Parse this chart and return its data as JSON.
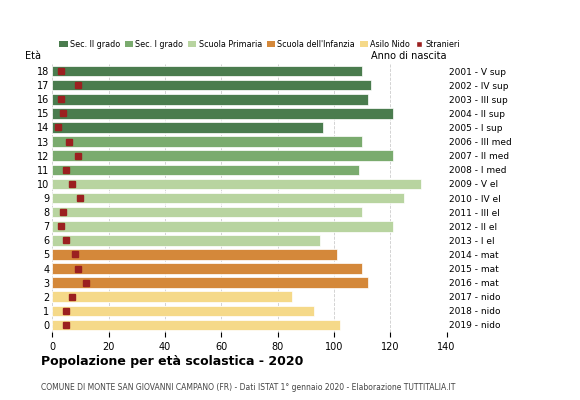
{
  "ages": [
    18,
    17,
    16,
    15,
    14,
    13,
    12,
    11,
    10,
    9,
    8,
    7,
    6,
    5,
    4,
    3,
    2,
    1,
    0
  ],
  "anno_nascita": [
    "2001 - V sup",
    "2002 - IV sup",
    "2003 - III sup",
    "2004 - II sup",
    "2005 - I sup",
    "2006 - III med",
    "2007 - II med",
    "2008 - I med",
    "2009 - V el",
    "2010 - IV el",
    "2011 - III el",
    "2012 - II el",
    "2013 - I el",
    "2014 - mat",
    "2015 - mat",
    "2016 - mat",
    "2017 - nido",
    "2018 - nido",
    "2019 - nido"
  ],
  "bar_values": [
    110,
    113,
    112,
    121,
    96,
    110,
    121,
    109,
    131,
    125,
    110,
    121,
    95,
    101,
    110,
    112,
    85,
    93,
    102
  ],
  "bar_colors": [
    "#4a7c4e",
    "#4a7c4e",
    "#4a7c4e",
    "#4a7c4e",
    "#4a7c4e",
    "#7aab6e",
    "#7aab6e",
    "#7aab6e",
    "#b8d4a0",
    "#b8d4a0",
    "#b8d4a0",
    "#b8d4a0",
    "#b8d4a0",
    "#d4883a",
    "#d4883a",
    "#d4883a",
    "#f5d989",
    "#f5d989",
    "#f5d989"
  ],
  "stranieri_values": [
    3,
    9,
    3,
    4,
    2,
    6,
    9,
    5,
    7,
    10,
    4,
    3,
    5,
    8,
    9,
    12,
    7,
    5,
    5
  ],
  "legend_labels": [
    "Sec. II grado",
    "Sec. I grado",
    "Scuola Primaria",
    "Scuola dell'Infanzia",
    "Asilo Nido",
    "Stranieri"
  ],
  "legend_colors": [
    "#4a7c4e",
    "#7aab6e",
    "#b8d4a0",
    "#d4883a",
    "#f5d989",
    "#9b2020"
  ],
  "title": "Popolazione per età scolastica - 2020",
  "subtitle": "COMUNE DI MONTE SAN GIOVANNI CAMPANO (FR) - Dati ISTAT 1° gennaio 2020 - Elaborazione TUTTITALIA.IT",
  "xlabel_eta": "Età",
  "xlabel_anno": "Anno di nascita",
  "xlim": [
    0,
    140
  ],
  "background_color": "#ffffff",
  "bar_height": 0.75,
  "grid_color": "#aaaaaa",
  "stranieri_color": "#9b2020",
  "stranieri_size": 4.0
}
